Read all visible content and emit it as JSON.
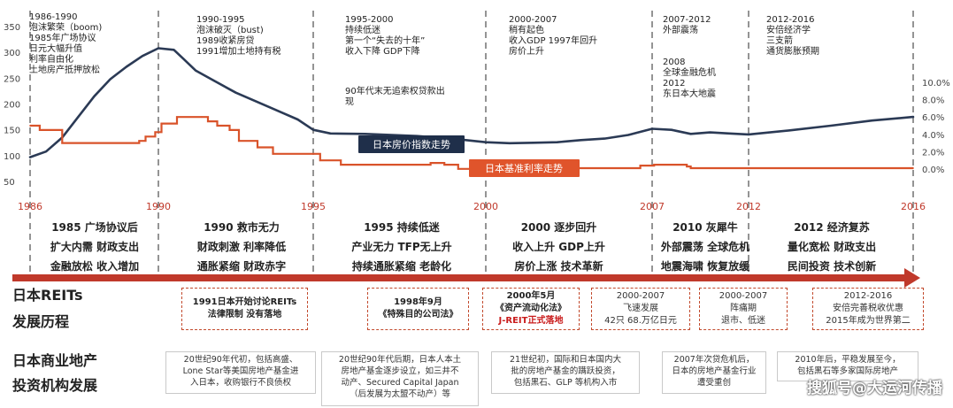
{
  "chart_data": {
    "type": "line",
    "x_ticks": [
      "1986",
      "1990",
      "1995",
      "2000",
      "2007",
      "2012",
      "2016"
    ],
    "xlim": [
      1986,
      2016
    ],
    "y_left": {
      "ticks": [
        "350",
        "300",
        "250",
        "200",
        "150",
        "100",
        "50"
      ],
      "range": [
        50,
        350
      ]
    },
    "y_right": {
      "ticks": [
        "10.0%",
        "8.0%",
        "6.0%",
        "4.0%",
        "2.0%",
        "0.0%"
      ],
      "range": [
        0,
        10
      ]
    },
    "grid": false,
    "series": [
      {
        "name": "日本房价指数走势",
        "axis": "left",
        "color": "#2b3a55",
        "points": [
          [
            1986,
            97
          ],
          [
            1986.5,
            108
          ],
          [
            1987,
            135
          ],
          [
            1987.5,
            175
          ],
          [
            1988,
            215
          ],
          [
            1988.5,
            248
          ],
          [
            1989,
            272
          ],
          [
            1989.5,
            293
          ],
          [
            1990,
            308
          ],
          [
            1990.5,
            305
          ],
          [
            1990.8,
            288
          ],
          [
            1991.2,
            265
          ],
          [
            1991.8,
            245
          ],
          [
            1992.5,
            222
          ],
          [
            1993.5,
            196
          ],
          [
            1994.5,
            170
          ],
          [
            1995,
            150
          ],
          [
            1995.5,
            143
          ],
          [
            1996.5,
            142
          ],
          [
            1998,
            138
          ],
          [
            1999,
            133
          ],
          [
            2000,
            126
          ],
          [
            2001,
            124
          ],
          [
            2002,
            125
          ],
          [
            2003,
            126
          ],
          [
            2004,
            130
          ],
          [
            2005,
            133
          ],
          [
            2006,
            140
          ],
          [
            2007,
            152
          ],
          [
            2008,
            150
          ],
          [
            2009,
            142
          ],
          [
            2010,
            145
          ],
          [
            2011,
            143
          ],
          [
            2012,
            141
          ],
          [
            2013,
            149
          ],
          [
            2014,
            158
          ],
          [
            2015,
            168
          ],
          [
            2016,
            175
          ]
        ]
      },
      {
        "name": "日本基准利率走势",
        "axis": "right",
        "color": "#d9532a",
        "points": [
          [
            1986,
            5.0
          ],
          [
            1986.3,
            4.5
          ],
          [
            1987,
            3.0
          ],
          [
            1989,
            3.0
          ],
          [
            1989.4,
            3.25
          ],
          [
            1989.6,
            3.75
          ],
          [
            1989.9,
            4.25
          ],
          [
            1990.1,
            5.25
          ],
          [
            1990.6,
            6.0
          ],
          [
            1991.4,
            6.0
          ],
          [
            1991.6,
            5.5
          ],
          [
            1991.9,
            5.0
          ],
          [
            1992.3,
            4.5
          ],
          [
            1992.6,
            3.25
          ],
          [
            1993.2,
            2.5
          ],
          [
            1993.7,
            1.75
          ],
          [
            1995.2,
            1.0
          ],
          [
            1995.8,
            0.5
          ],
          [
            1998,
            0.5
          ],
          [
            1998.4,
            0.7
          ],
          [
            1998.8,
            0.5
          ],
          [
            1999.2,
            0.02
          ],
          [
            2000.6,
            0.25
          ],
          [
            2001.2,
            0.1
          ],
          [
            2006.5,
            0.4
          ],
          [
            2007.1,
            0.5
          ],
          [
            2008.8,
            0.3
          ],
          [
            2009,
            0.1
          ],
          [
            2016,
            0.1
          ]
        ]
      }
    ]
  },
  "chart_labels": {
    "house_price": "日本房价指数走势",
    "rate": "日本基准利率走势"
  },
  "colors": {
    "house_price_line": "#2b3a55",
    "rate_line": "#d9532a",
    "timeline_arrow": "#c0392b",
    "divider": "#7a7a7a",
    "reit_box_border": "#c24a2d"
  },
  "eras": [
    {
      "text": "1986-1990\n泡沫繁荣（boom)\n1985年广场协议\n日元大幅升值\n利率自由化\n土地房产抵押放松"
    },
    {
      "text": "1990-1995\n泡沫破灭（bust)\n1989收紧房贷\n1991增加土地持有税"
    },
    {
      "text": "1995-2000\n持续低迷\n第一个“失去的十年”\n收入下降 GDP下降"
    },
    {
      "text": "90年代末无追索权贷款出\n现"
    },
    {
      "text": "2000-2007\n稍有起色\n收入GDP 1997年回升\n房价上升"
    },
    {
      "text": "2007-2012\n外部震荡"
    },
    {
      "text": "2008\n全球金融危机\n2012\n东日本大地震"
    },
    {
      "text": "2012-2016\n安倍经济学\n三支箭\n通货膨胀预期"
    }
  ],
  "analysis": [
    {
      "text": "1985 广场协议后\n扩大内需  财政支出\n金融放松  收入增加"
    },
    {
      "text": "1990 救市无力\n财政刺激  利率降低\n通胀紧缩  财政赤字"
    },
    {
      "text": "1995 持续低迷\n产业无力  TFP无上升\n持续通胀紧缩  老龄化"
    },
    {
      "text": "2000 逐步回升\n收入上升  GDP上升\n房价上涨  技术革新"
    },
    {
      "text": "2010 灰犀牛\n外部震荡  全球危机\n地震海啸  恢复放缓"
    },
    {
      "text": "2012 经济复苏\n量化宽松  财政支出\n民间投资  技术创新"
    }
  ],
  "sections": {
    "reit_title_1": "日本REITs",
    "reit_title_2": "发展历程",
    "inst_title_1": "日本商业地产",
    "inst_title_2": "投资机构发展"
  },
  "reit_boxes": [
    {
      "l1": "1991日本开始讨论REITs",
      "l2": "法律限制 没有落地"
    },
    {
      "l1": "1998年9月",
      "l2": "《特殊目的公司法》"
    },
    {
      "l1": "2000年5月",
      "l2": "《资产流动化法》",
      "l3": "J-REIT正式落地"
    },
    {
      "l1": "2000-2007",
      "l2": "飞速发展",
      "l3": "42只 68.万亿日元"
    },
    {
      "l1": "2000-2007",
      "l2": "阵痛期",
      "l3": "退市、低迷"
    },
    {
      "l1": "2012-2016",
      "l2": "安倍完善税收优惠",
      "l3": "2015年成为世界第二"
    }
  ],
  "inst_boxes": [
    {
      "text": "20世纪90年代初，包括高盛、\nLone Star等美国房地产基金进\n入日本，收购银行不良债权"
    },
    {
      "text": "20世纪90年代后期，日本人本土\n房地产基金逐步设立，如三井不\n动产、Secured Capital Japan\n（后发展为太盟不动产）等"
    },
    {
      "text": "21世纪初，国际和日本国内大\n批的房地产基金的蹒跃投资，\n包括黑石、GLP 等机构入市"
    },
    {
      "text": "2007年次贷危机后，\n日本的房地产基金行业\n遭受重创"
    },
    {
      "text": "2010年后，平稳发展至今，\n包括黑石等多家国际房地产"
    }
  ],
  "watermark": "搜狐号@大运河传播"
}
